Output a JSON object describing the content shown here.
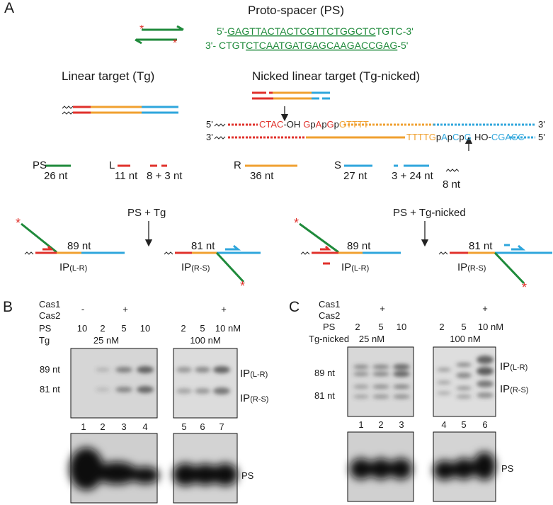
{
  "panel_a": {
    "label": "A",
    "ps_title": "Proto-spacer (PS)",
    "ps_top": {
      "prefix": "5'-",
      "underlined": "GAGTTACTACTCGTTCTGGCTC",
      "suffix": "TGTC-3'"
    },
    "ps_bottom": {
      "prefix": "3'- CTGT",
      "underlined": "CTCAATGATGAGCAAGACCGAG",
      "suffix": "-5'"
    },
    "linear_title": "Linear target (Tg)",
    "nicked_title": "Nicked linear target (Tg-nicked)",
    "nicked_top": [
      "5'",
      "CTAC",
      "-OH",
      "G",
      "p",
      "A",
      "p",
      "G",
      "p",
      "GTTTT",
      "3'"
    ],
    "nicked_bottom": [
      "3'",
      "TTTTG",
      "p",
      "A",
      "p",
      "C",
      "p",
      "G",
      "HO-",
      "CGACC",
      "5'"
    ],
    "legend": {
      "ps": "PS",
      "ps_len": "26 nt",
      "l": "L",
      "l_len": "11 nt",
      "l_split": "8 + 3 nt",
      "r": "R",
      "r_len": "36 nt",
      "s": "S",
      "s_len": "27 nt",
      "s_split": "3 + 24 nt",
      "linker_len": "8 nt"
    },
    "tg": {
      "title": "PS + Tg",
      "lr_len": "89 nt",
      "lr_ip": "IP",
      "lr_sub": "(L-R)",
      "rs_len": "81 nt",
      "rs_ip": "IP",
      "rs_sub": "(R-S)"
    },
    "tg_nicked": {
      "title": "PS + Tg-nicked",
      "lr_len": "89 nt",
      "lr_ip": "IP",
      "lr_sub": "(L-R)",
      "rs_len": "81 nt",
      "rs_ip": "IP",
      "rs_sub": "(R-S)"
    }
  },
  "panel_b": {
    "label": "B",
    "rows": [
      "Cas1",
      "Cas2",
      "PS",
      "Tg"
    ],
    "cas": [
      "-",
      "+",
      "+"
    ],
    "ps": [
      10,
      2,
      5,
      10,
      2,
      5,
      "10 nM"
    ],
    "tg": [
      "25 nM",
      "100 nM"
    ],
    "markers": [
      "89 nt",
      "81 nt"
    ],
    "products": [
      {
        "ip": "IP",
        "sub": "(L-R)"
      },
      {
        "ip": "IP",
        "sub": "(R-S)"
      }
    ],
    "lanes": [
      1,
      2,
      3,
      4,
      5,
      6,
      7
    ],
    "loading": "PS"
  },
  "panel_c": {
    "label": "C",
    "rows": [
      "Cas1",
      "Cas2",
      "PS",
      "Tg-nicked"
    ],
    "cas": [
      "+",
      "+"
    ],
    "ps": [
      2,
      5,
      10,
      2,
      5,
      "10 nM"
    ],
    "tg": [
      "25 nM",
      "100 nM"
    ],
    "markers": [
      "89 nt",
      "81 nt"
    ],
    "products": [
      {
        "ip": "IP",
        "sub": "(L-R)"
      },
      {
        "ip": "IP",
        "sub": "(R-S)"
      }
    ],
    "lanes": [
      1,
      2,
      3,
      4,
      5,
      6
    ],
    "loading": "PS"
  }
}
